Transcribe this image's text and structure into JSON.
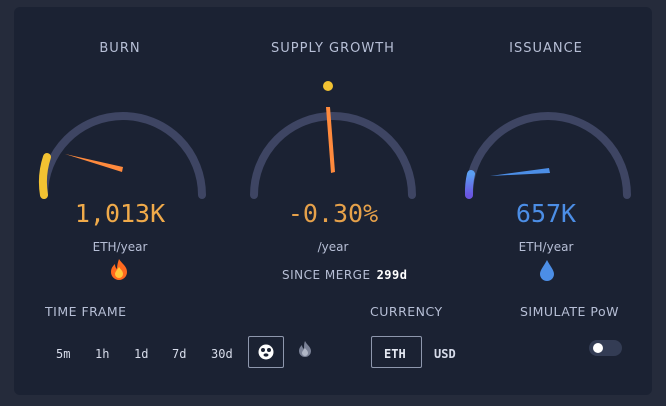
{
  "gauges": {
    "burn": {
      "title": "BURN",
      "value": "1,013K",
      "unit": "ETH/year",
      "icon": "fire-icon",
      "color": "#f0aa4a"
    },
    "supply": {
      "title": "SUPPLY GROWTH",
      "value": "-0.30%",
      "unit": "/year",
      "color": "#e6a14a"
    },
    "issuance": {
      "title": "ISSUANCE",
      "value": "657K",
      "unit": "ETH/year",
      "icon": "droplet-icon",
      "color": "#4c8ee6"
    }
  },
  "since_merge": {
    "label": "SINCE MERGE",
    "value": "299d"
  },
  "timeframe": {
    "label": "TIME FRAME",
    "options": [
      "5m",
      "1h",
      "1d",
      "7d",
      "30d"
    ],
    "selected": "ultrasound-icon"
  },
  "currency": {
    "label": "CURRENCY",
    "options": [
      "ETH",
      "USD"
    ],
    "selected": "ETH"
  },
  "simulate": {
    "label": "SIMULATE PoW",
    "enabled": false
  },
  "colors": {
    "background": "#252b3b",
    "card": "#1b2233",
    "track": "#3e4563",
    "burn_accent": "#f2c232",
    "issuance_accent": "#4c8ee6",
    "needle": "#ff8a3d"
  }
}
